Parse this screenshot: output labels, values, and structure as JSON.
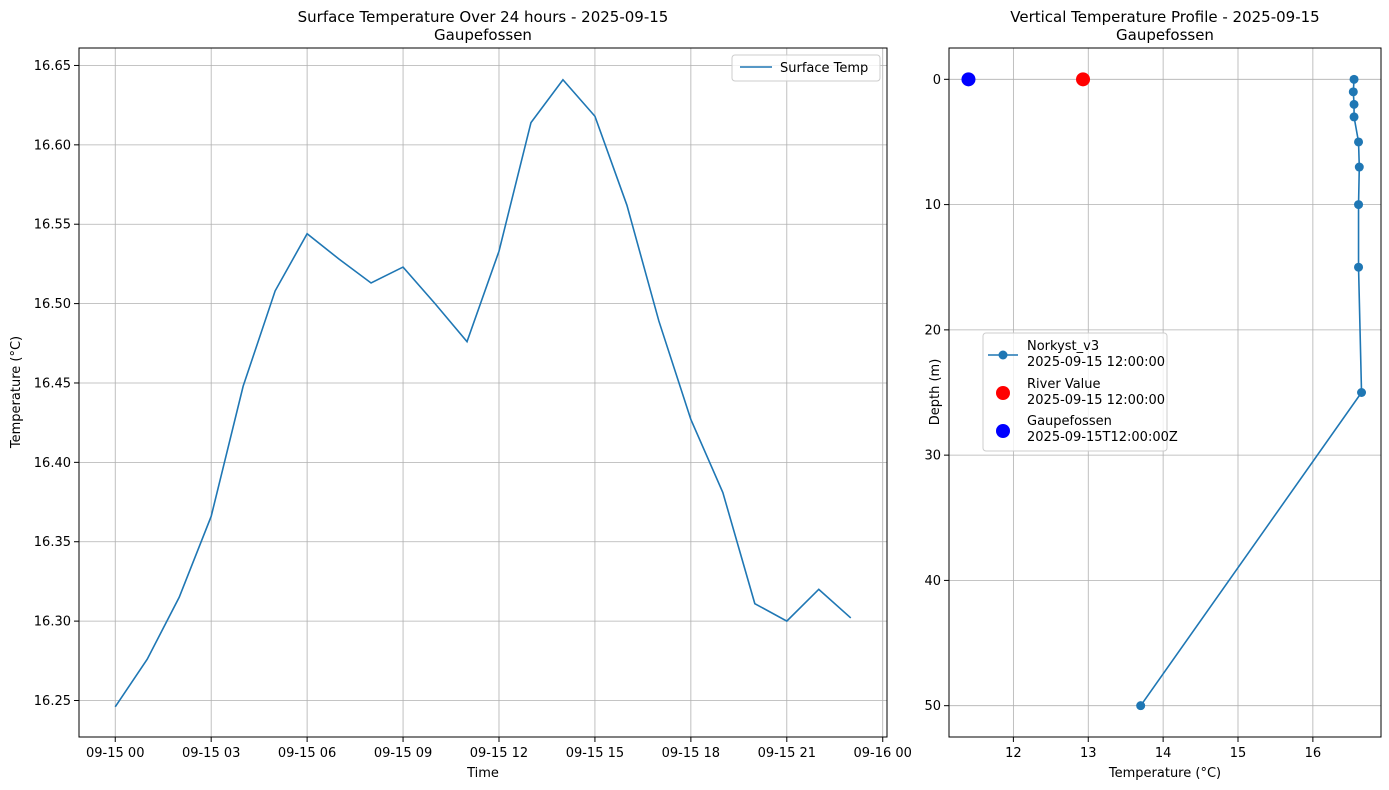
{
  "colors": {
    "line": "#1f77b4",
    "river": "#ff0000",
    "station": "#0000ff",
    "grid": "#b0b0b0"
  },
  "chart_data": [
    {
      "type": "line",
      "title": "Surface Temperature Over 24 hours - 2025-09-15",
      "subtitle": "Gaupefossen",
      "xlabel": "Time",
      "ylabel": "Temperature (°C)",
      "grid": true,
      "legend": {
        "placement": "upper right",
        "entries": [
          "Surface Temp"
        ]
      },
      "x_ticks": [
        "09-15 00",
        "09-15 03",
        "09-15 06",
        "09-15 09",
        "09-15 12",
        "09-15 15",
        "09-15 18",
        "09-15 21",
        "09-16 00"
      ],
      "y_ticks": [
        "16.25",
        "16.30",
        "16.35",
        "16.40",
        "16.45",
        "16.50",
        "16.55",
        "16.60",
        "16.65"
      ],
      "ylim": [
        16.227,
        16.661
      ],
      "xlim": [
        "2025-09-14 22:52",
        "2025-09-16 00:08"
      ],
      "series": [
        {
          "name": "Surface Temp",
          "x": [
            "2025-09-15 00:00",
            "2025-09-15 01:00",
            "2025-09-15 02:00",
            "2025-09-15 03:00",
            "2025-09-15 04:00",
            "2025-09-15 05:00",
            "2025-09-15 06:00",
            "2025-09-15 07:00",
            "2025-09-15 08:00",
            "2025-09-15 09:00",
            "2025-09-15 10:00",
            "2025-09-15 11:00",
            "2025-09-15 12:00",
            "2025-09-15 13:00",
            "2025-09-15 14:00",
            "2025-09-15 15:00",
            "2025-09-15 16:00",
            "2025-09-15 17:00",
            "2025-09-15 18:00",
            "2025-09-15 19:00",
            "2025-09-15 20:00",
            "2025-09-15 21:00",
            "2025-09-15 22:00",
            "2025-09-15 23:00"
          ],
          "values": [
            16.246,
            16.276,
            16.315,
            16.366,
            16.448,
            16.508,
            16.544,
            16.528,
            16.513,
            16.523,
            16.5,
            16.476,
            16.533,
            16.614,
            16.641,
            16.618,
            16.562,
            16.489,
            16.427,
            16.381,
            16.311,
            16.3,
            16.32,
            16.302
          ]
        }
      ]
    },
    {
      "type": "line",
      "title": "Vertical Temperature Profile - 2025-09-15",
      "subtitle": "Gaupefossen",
      "xlabel": "Temperature (°C)",
      "ylabel": "Depth (m)",
      "grid": true,
      "y_inverted": true,
      "legend": {
        "placement": "center left"
      },
      "x_ticks": [
        "12",
        "13",
        "14",
        "15",
        "16"
      ],
      "y_ticks": [
        "0",
        "10",
        "20",
        "30",
        "40",
        "50"
      ],
      "xlim": [
        11.14,
        16.91
      ],
      "ylim": [
        52.5,
        -2.5
      ],
      "series": [
        {
          "name": "Norkyst_v3",
          "name_line2": "2025-09-15 12:00:00",
          "marker": "circle-line",
          "x": [
            16.55,
            16.54,
            16.55,
            16.55,
            16.61,
            16.62,
            16.61,
            16.61,
            16.65,
            13.7
          ],
          "y": [
            0,
            1,
            2,
            3,
            5,
            7,
            10,
            15,
            25,
            50
          ]
        },
        {
          "name": "River Value",
          "name_line2": "2025-09-15 12:00:00",
          "marker": "circle",
          "x": [
            12.93
          ],
          "y": [
            0
          ]
        },
        {
          "name": "Gaupefossen",
          "name_line2": "2025-09-15T12:00:00Z",
          "marker": "circle",
          "x": [
            11.4
          ],
          "y": [
            0
          ]
        }
      ]
    }
  ]
}
